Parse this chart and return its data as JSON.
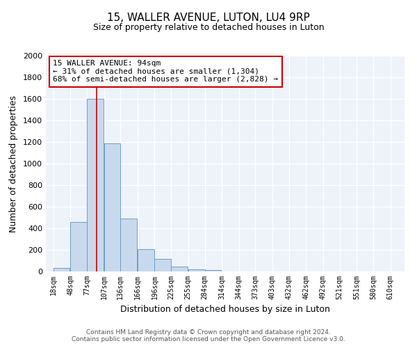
{
  "title": "15, WALLER AVENUE, LUTON, LU4 9RP",
  "subtitle": "Size of property relative to detached houses in Luton",
  "xlabel": "Distribution of detached houses by size in Luton",
  "ylabel": "Number of detached properties",
  "bar_left_edges": [
    18,
    48,
    77,
    107,
    136,
    166,
    196,
    225,
    255,
    284,
    314,
    344,
    373,
    403,
    432,
    462,
    492,
    521,
    551,
    580
  ],
  "bar_heights": [
    30,
    455,
    1600,
    1190,
    490,
    205,
    115,
    45,
    20,
    10,
    0,
    0,
    0,
    0,
    0,
    0,
    0,
    0,
    0,
    0
  ],
  "bin_width": 29,
  "bar_color": "#c9d9ed",
  "bar_edgecolor": "#6b9ec8",
  "property_line_x": 94,
  "property_line_color": "#cc0000",
  "annotation_title": "15 WALLER AVENUE: 94sqm",
  "annotation_line1": "← 31% of detached houses are smaller (1,304)",
  "annotation_line2": "68% of semi-detached houses are larger (2,828) →",
  "annotation_box_edgecolor": "#cc0000",
  "annotation_box_facecolor": "#ffffff",
  "tick_labels": [
    "18sqm",
    "48sqm",
    "77sqm",
    "107sqm",
    "136sqm",
    "166sqm",
    "196sqm",
    "225sqm",
    "255sqm",
    "284sqm",
    "314sqm",
    "344sqm",
    "373sqm",
    "403sqm",
    "432sqm",
    "462sqm",
    "492sqm",
    "521sqm",
    "551sqm",
    "580sqm",
    "610sqm"
  ],
  "tick_positions": [
    18,
    48,
    77,
    107,
    136,
    166,
    196,
    225,
    255,
    284,
    314,
    344,
    373,
    403,
    432,
    462,
    492,
    521,
    551,
    580,
    610
  ],
  "ylim": [
    0,
    2000
  ],
  "xlim": [
    5,
    635
  ],
  "yticks": [
    0,
    200,
    400,
    600,
    800,
    1000,
    1200,
    1400,
    1600,
    1800,
    2000
  ],
  "background_color": "#eef2f9",
  "footer_line1": "Contains HM Land Registry data © Crown copyright and database right 2024.",
  "footer_line2": "Contains public sector information licensed under the Open Government Licence v3.0."
}
